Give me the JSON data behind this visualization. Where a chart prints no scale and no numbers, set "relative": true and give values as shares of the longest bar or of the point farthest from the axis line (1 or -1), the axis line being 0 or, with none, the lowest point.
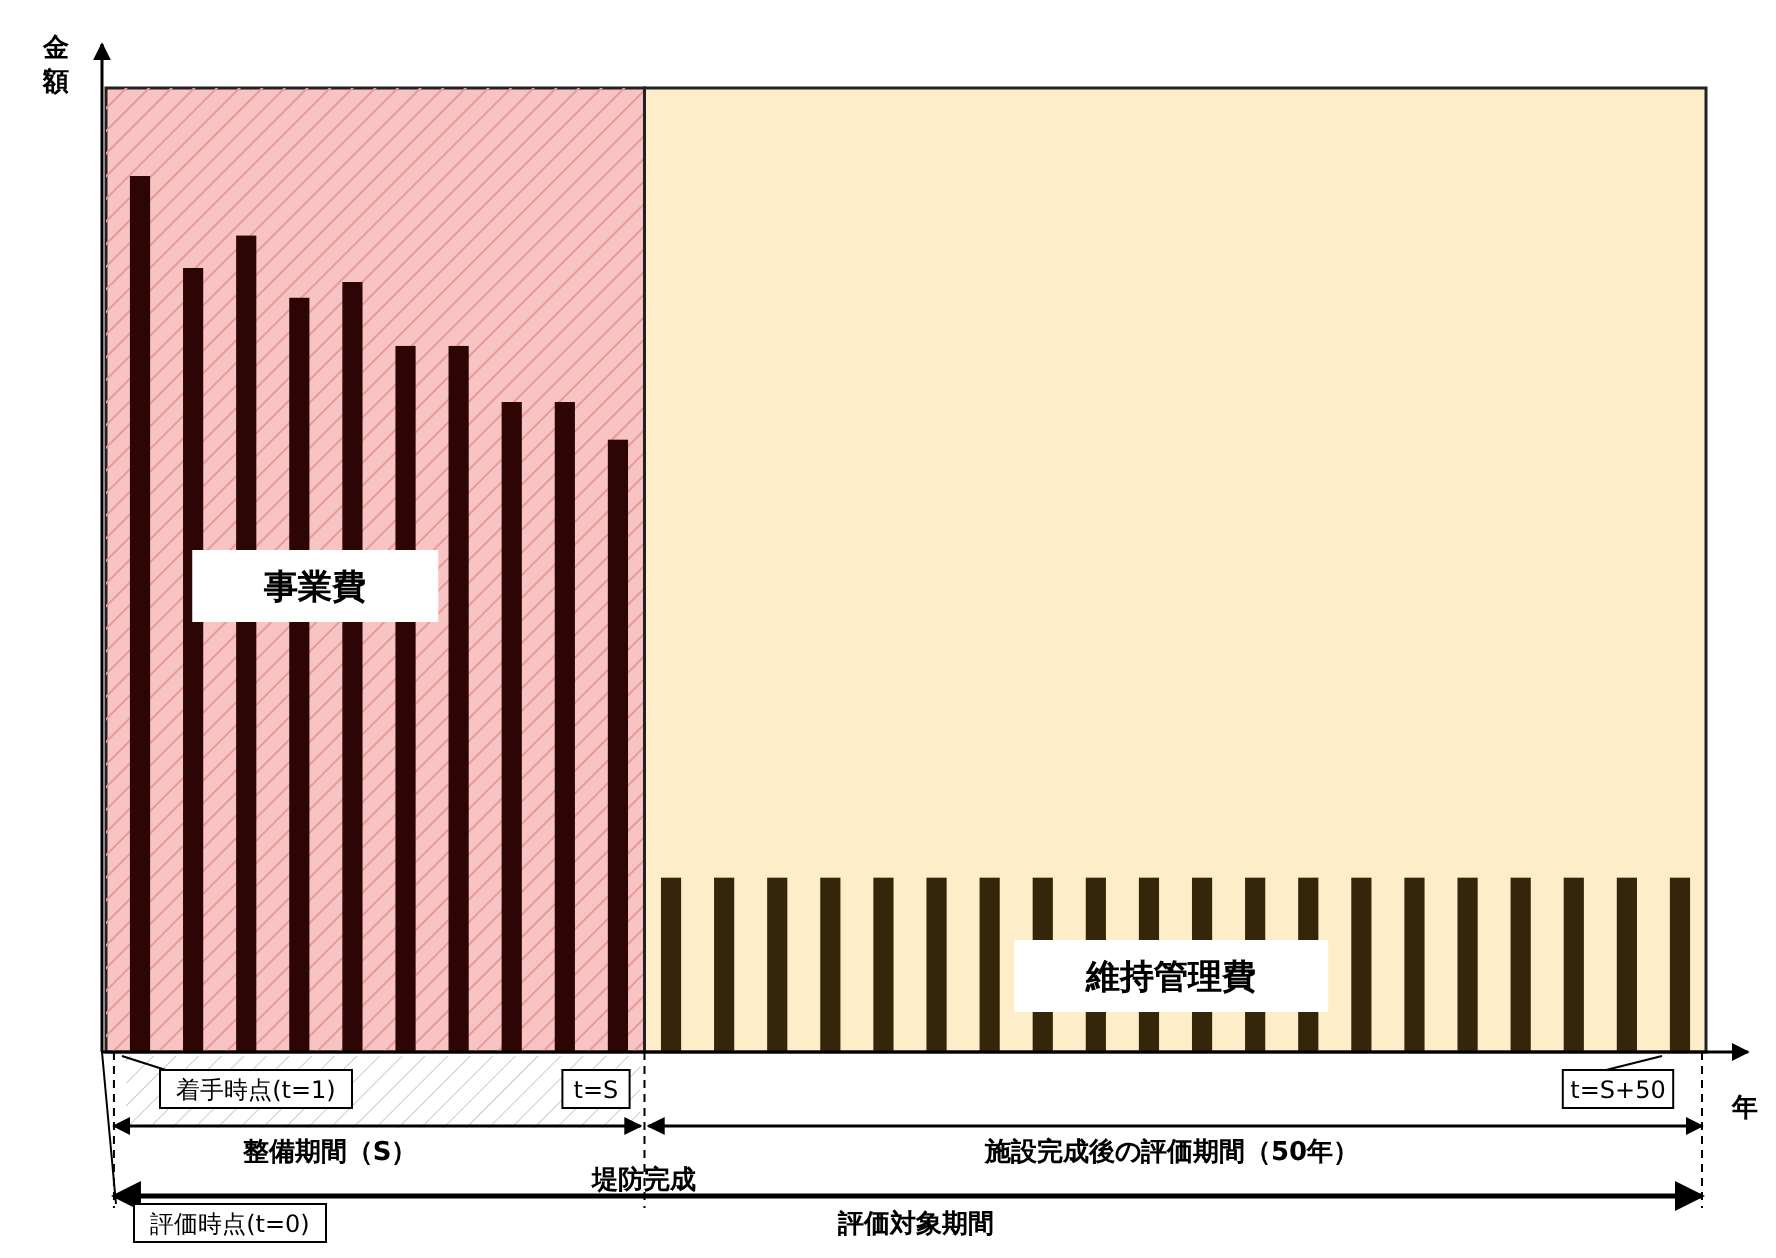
{
  "chart_data": {
    "type": "bar",
    "relative": true,
    "xlabel": "年",
    "ylabel": "金額",
    "categories": [
      null,
      null,
      null,
      null,
      null,
      null,
      null,
      null,
      null,
      null,
      null,
      null,
      null,
      null,
      null,
      null,
      null,
      null,
      null,
      null,
      null,
      null,
      null,
      null,
      null,
      null,
      null,
      null,
      null,
      null
    ],
    "values": [
      1,
      0.895,
      0.932,
      0.861,
      0.879,
      0.806,
      0.806,
      0.742,
      0.742,
      0.699,
      0.199,
      0.199,
      0.199,
      0.199,
      0.199,
      0.199,
      0.199,
      0.199,
      0.199,
      0.199,
      0.199,
      0.199,
      0.199,
      0.199,
      0.199,
      0.199,
      0.199,
      0.199,
      0.199,
      0.199
    ],
    "colors": [
      "#2e0505",
      "#2e0505",
      "#2e0505",
      "#2e0505",
      "#2e0505",
      "#2e0505",
      "#2e0505",
      "#2e0505",
      "#2e0505",
      "#2e0505",
      "#33260a",
      "#33260a",
      "#33260a",
      "#33260a",
      "#33260a",
      "#33260a",
      "#33260a",
      "#33260a",
      "#33260a",
      "#33260a",
      "#33260a",
      "#33260a",
      "#33260a",
      "#33260a",
      "#33260a",
      "#33260a",
      "#33260a",
      "#33260a",
      "#33260a",
      "#33260a"
    ],
    "annotations": [
      "事業費",
      "維持管理費",
      "着手時点(t=1)",
      "t=S",
      "t=S+50",
      "整備期間（S）",
      "堤防完成",
      "施設完成後の評価期間（50年）",
      "評価対象期間",
      "評価時点(t=0)"
    ]
  }
}
